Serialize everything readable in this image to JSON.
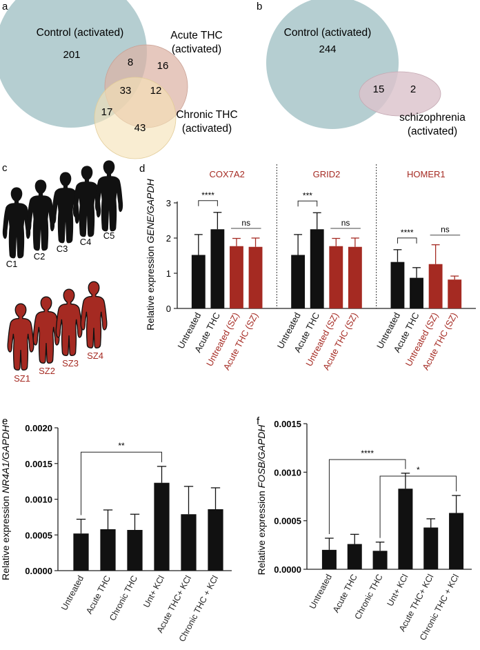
{
  "colors": {
    "black": "#111111",
    "red": "#a52a22",
    "venn_control": "#adc9cc",
    "venn_acute": "#dcb3a5",
    "venn_chronic": "#f6e2b6",
    "venn_sz": "#dcc3cc"
  },
  "panel_a": {
    "letter": "a",
    "control_label": "Control (activated)",
    "acute_label_1": "Acute THC",
    "acute_label_2": "(activated)",
    "chronic_label_1": "Chronic THC",
    "chronic_label_2": "(activated)",
    "counts": {
      "control_only": "201",
      "control_acute": "8",
      "acute_only": "16",
      "all_three": "33",
      "acute_chronic": "12",
      "control_chronic": "17",
      "chronic_only": "43"
    }
  },
  "panel_b": {
    "letter": "b",
    "control_label": "Control (activated)",
    "sz_label_1": "schizophrenia",
    "sz_label_2": "(activated)",
    "counts": {
      "control_only": "244",
      "overlap": "15",
      "sz_only": "2"
    }
  },
  "panel_c": {
    "letter": "c",
    "controls": [
      "C1",
      "C2",
      "C3",
      "C4",
      "C5"
    ],
    "patients": [
      "SZ1",
      "SZ2",
      "SZ3",
      "SZ4"
    ]
  },
  "chart_data": [
    {
      "panel": "d",
      "type": "bar",
      "ylabel_prefix": "Relative expression ",
      "ylabel_italic": "GENE/GAPDH",
      "ylim": [
        0,
        3
      ],
      "yticks": [
        "0",
        "1",
        "2",
        "3"
      ],
      "categories": [
        "Untreated",
        "Acute THC",
        "Untreated (SZ)",
        "Acute THC (SZ)"
      ],
      "category_colors": [
        "black",
        "black",
        "red",
        "red"
      ],
      "genes": [
        {
          "name": "COX7A2",
          "values": [
            1.52,
            2.25,
            1.77,
            1.75
          ],
          "errors": [
            0.58,
            0.48,
            0.22,
            0.25
          ],
          "sig": [
            {
              "from": 0,
              "to": 1,
              "label": "****",
              "style": "bracket"
            },
            {
              "from": 2,
              "to": 3,
              "label": "ns",
              "style": "line"
            }
          ]
        },
        {
          "name": "GRID2",
          "values": [
            1.52,
            2.25,
            1.77,
            1.75
          ],
          "errors": [
            0.58,
            0.47,
            0.22,
            0.25
          ],
          "sig": [
            {
              "from": 0,
              "to": 1,
              "label": "***",
              "style": "bracket"
            },
            {
              "from": 2,
              "to": 3,
              "label": "ns",
              "style": "line"
            }
          ]
        },
        {
          "name": "HOMER1",
          "values": [
            1.32,
            0.87,
            1.26,
            0.82
          ],
          "errors": [
            0.35,
            0.29,
            0.55,
            0.1
          ],
          "sig": [
            {
              "from": 0,
              "to": 1,
              "label": "****",
              "style": "bracket"
            },
            {
              "from": 2,
              "to": 3,
              "label": "ns",
              "style": "line"
            }
          ]
        }
      ]
    },
    {
      "panel": "e",
      "type": "bar",
      "ylabel_prefix": "Relative expression ",
      "ylabel_italic": "NR4A1/GAPDH",
      "ylim": [
        0,
        0.002
      ],
      "yticks": [
        "0.0000",
        "0.0005",
        "0.0010",
        "0.0015",
        "0.0020"
      ],
      "categories": [
        "Untreated",
        "Acute THC",
        "Chronic THC",
        "Unt+ KCl",
        "Acute THC+ KCl",
        "Chronic THC + KCl"
      ],
      "values": [
        0.00052,
        0.00058,
        0.00057,
        0.00123,
        0.00079,
        0.00086
      ],
      "errors": [
        0.0002,
        0.00027,
        0.00022,
        0.00023,
        0.00039,
        0.0003
      ],
      "sig": [
        {
          "from": 0,
          "to": 3,
          "label": "**",
          "y": 0.00166
        }
      ]
    },
    {
      "panel": "f",
      "type": "bar",
      "ylabel_prefix": "Relative expression ",
      "ylabel_italic": "FOSB/GAPDH",
      "ylim": [
        0,
        0.0015
      ],
      "yticks": [
        "0.0000",
        "0.0005",
        "0.0010",
        "0.0015"
      ],
      "categories": [
        "Untreated",
        "Acute THC",
        "Chronic THC",
        "Unt+ KCl",
        "Acute THC+ KCl",
        "Chronic THC + KCl"
      ],
      "values": [
        0.0002,
        0.00026,
        0.00019,
        0.00083,
        0.00043,
        0.00058
      ],
      "errors": [
        0.00012,
        0.0001,
        9e-05,
        0.00016,
        9e-05,
        0.00018
      ],
      "sig": [
        {
          "from": 0,
          "to": 3,
          "label": "****",
          "y": 0.00113
        },
        {
          "from": 2,
          "to": 5,
          "label": "*",
          "y": 0.00096
        }
      ]
    }
  ]
}
